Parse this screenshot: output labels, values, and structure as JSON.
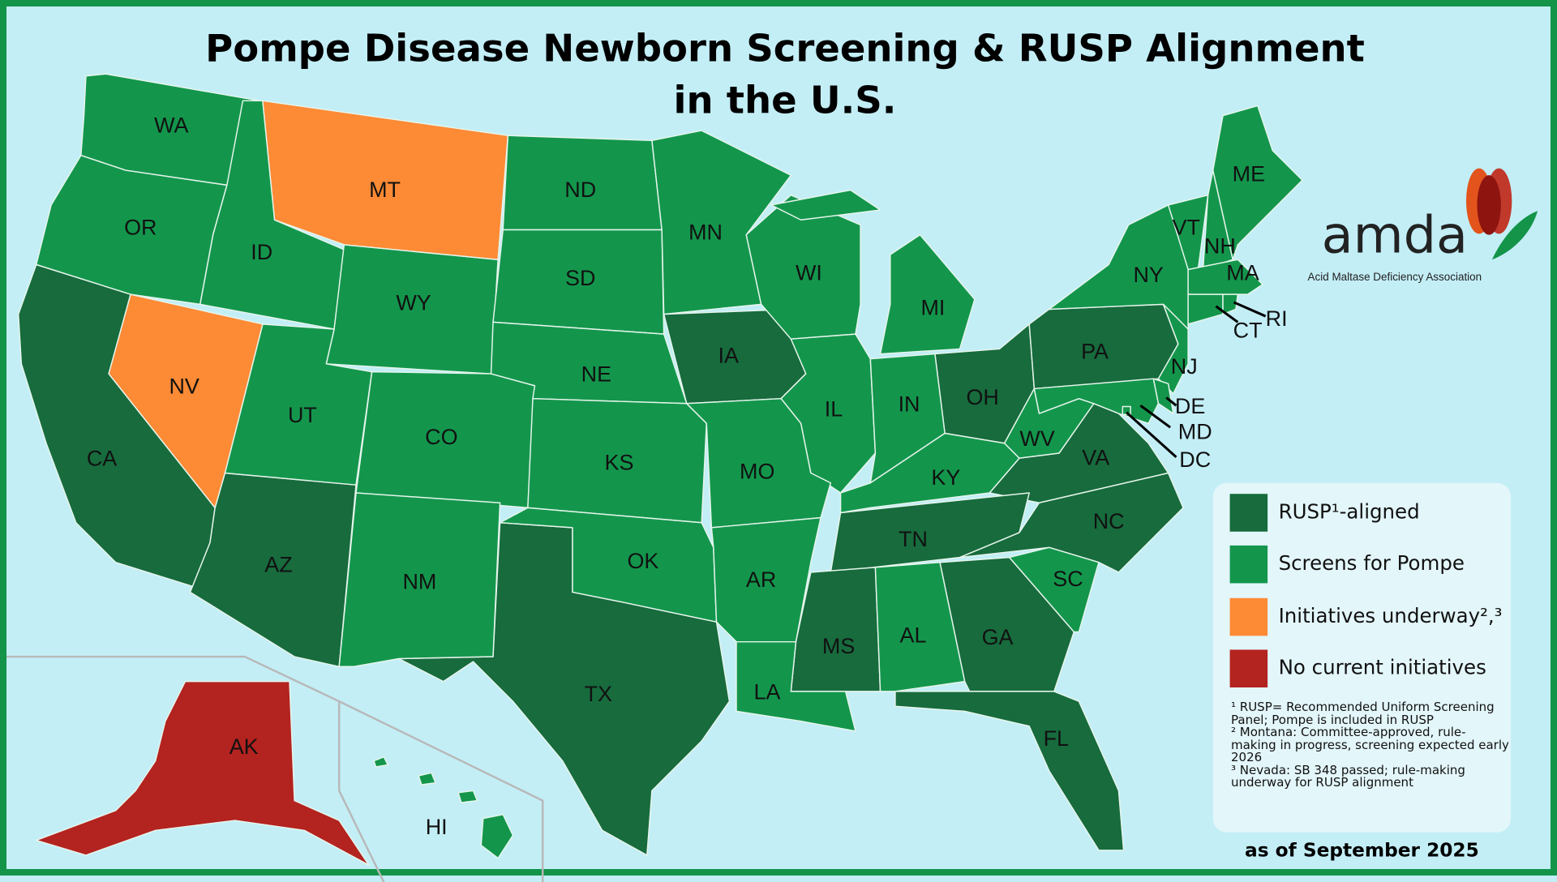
{
  "title_lines": [
    "Pompe Disease Newborn Screening & RUSP Alignment",
    "in the U.S."
  ],
  "logo": {
    "name": "amda",
    "subtitle": "Acid Maltase Deficiency Association"
  },
  "legend": [
    {
      "label": "RUSP¹-aligned",
      "color": "#176b3d",
      "states": [
        "CA",
        "AZ",
        "TX",
        "IA",
        "OH",
        "PA",
        "VA",
        "NC",
        "TN",
        "MS",
        "GA",
        "FL"
      ]
    },
    {
      "label": "Screens for Pompe",
      "color": "#13964c",
      "states": [
        "WA",
        "OR",
        "ID",
        "WY",
        "UT",
        "CO",
        "NM",
        "ND",
        "SD",
        "NE",
        "KS",
        "OK",
        "MN",
        "WI",
        "MI",
        "IL",
        "IN",
        "MO",
        "AR",
        "LA",
        "KY",
        "WV",
        "AL",
        "SC",
        "NY",
        "VT",
        "NH",
        "ME",
        "MA",
        "CT",
        "RI",
        "NJ",
        "DE",
        "MD",
        "DC",
        "HI"
      ]
    },
    {
      "label": "Initiatives underway²,³",
      "color": "#fd8a35",
      "states": [
        "MT",
        "NV"
      ]
    },
    {
      "label": "No current initiatives",
      "color": "#b3231f",
      "states": [
        "AK"
      ]
    }
  ],
  "footnotes": [
    "¹ RUSP= Recommended Uniform Screening Panel; Pompe is included in RUSP",
    "² Montana: Committee-approved, rule-making in progress, screening expected early 2026",
    "³ Nevada: SB 348 passed; rule-making underway for RUSP alignment"
  ],
  "date_note": "as of September 2025"
}
